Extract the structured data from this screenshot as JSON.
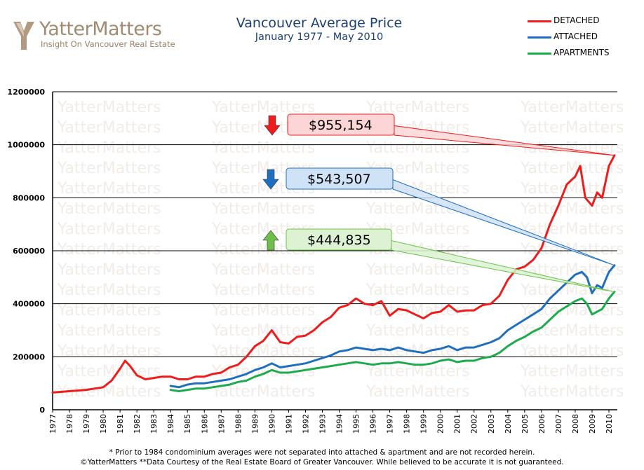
{
  "logo": {
    "name": "YatterMatters",
    "tagline": "Insight On Vancouver Real Estate",
    "watermark_text": "YatterMatters"
  },
  "chart_data": {
    "type": "line",
    "title": "Vancouver Average Price",
    "subtitle": "January 1977 - May 2010",
    "xlabel": "",
    "ylabel": "",
    "ylim": [
      0,
      1200000
    ],
    "yticks": [
      "0",
      "200000",
      "400000",
      "600000",
      "800000",
      "1000000",
      "1200000"
    ],
    "xticks": [
      "1977",
      "1978",
      "1979",
      "1980",
      "1981",
      "1982",
      "1983",
      "1984",
      "1985",
      "1986",
      "1987",
      "1988",
      "1989",
      "1990",
      "1991",
      "1992",
      "1993",
      "1994",
      "1995",
      "1996",
      "1997",
      "1998",
      "1999",
      "2000",
      "2001",
      "2002",
      "2003",
      "2004",
      "2005",
      "2006",
      "2007",
      "2008",
      "2009",
      "2010"
    ],
    "grid": true,
    "legend_position": "top-right",
    "series": [
      {
        "name": "DETACHED",
        "color": "#ee1c1c",
        "x": [
          1977.0,
          1978.0,
          1979.0,
          1980.0,
          1980.5,
          1981.0,
          1981.3,
          1981.6,
          1982.0,
          1982.5,
          1983.0,
          1983.5,
          1984.0,
          1984.5,
          1985.0,
          1985.5,
          1986.0,
          1986.5,
          1987.0,
          1987.5,
          1988.0,
          1988.5,
          1989.0,
          1989.5,
          1990.0,
          1990.5,
          1991.0,
          1991.5,
          1992.0,
          1992.5,
          1993.0,
          1993.5,
          1994.0,
          1994.5,
          1995.0,
          1995.5,
          1996.0,
          1996.5,
          1997.0,
          1997.5,
          1998.0,
          1998.5,
          1999.0,
          1999.5,
          2000.0,
          2000.5,
          2001.0,
          2001.5,
          2002.0,
          2002.5,
          2003.0,
          2003.5,
          2004.0,
          2004.5,
          2005.0,
          2005.5,
          2006.0,
          2006.5,
          2007.0,
          2007.5,
          2008.0,
          2008.3,
          2008.6,
          2009.0,
          2009.3,
          2009.6,
          2010.0,
          2010.33
        ],
        "values": [
          65000,
          70000,
          75000,
          85000,
          110000,
          155000,
          185000,
          165000,
          130000,
          115000,
          120000,
          125000,
          125000,
          115000,
          115000,
          125000,
          125000,
          135000,
          140000,
          160000,
          170000,
          200000,
          240000,
          260000,
          300000,
          255000,
          250000,
          275000,
          280000,
          300000,
          330000,
          350000,
          385000,
          395000,
          420000,
          400000,
          395000,
          410000,
          355000,
          380000,
          375000,
          360000,
          345000,
          365000,
          370000,
          395000,
          370000,
          375000,
          375000,
          395000,
          400000,
          430000,
          490000,
          530000,
          540000,
          565000,
          610000,
          700000,
          770000,
          850000,
          880000,
          920000,
          800000,
          770000,
          820000,
          800000,
          920000,
          960000
        ]
      },
      {
        "name": "ATTACHED",
        "color": "#1f6fc0",
        "x": [
          1984.0,
          1984.5,
          1985.0,
          1985.5,
          1986.0,
          1986.5,
          1987.0,
          1987.5,
          1988.0,
          1988.5,
          1989.0,
          1989.5,
          1990.0,
          1990.5,
          1991.0,
          1991.5,
          1992.0,
          1992.5,
          1993.0,
          1993.5,
          1994.0,
          1994.5,
          1995.0,
          1995.5,
          1996.0,
          1996.5,
          1997.0,
          1997.5,
          1998.0,
          1998.5,
          1999.0,
          1999.5,
          2000.0,
          2000.5,
          2001.0,
          2001.5,
          2002.0,
          2002.5,
          2003.0,
          2003.5,
          2004.0,
          2004.5,
          2005.0,
          2005.5,
          2006.0,
          2006.5,
          2007.0,
          2007.5,
          2008.0,
          2008.4,
          2008.7,
          2009.0,
          2009.3,
          2009.6,
          2010.0,
          2010.33
        ],
        "values": [
          90000,
          85000,
          95000,
          100000,
          100000,
          105000,
          110000,
          115000,
          125000,
          135000,
          150000,
          160000,
          175000,
          160000,
          165000,
          170000,
          175000,
          185000,
          195000,
          205000,
          220000,
          225000,
          235000,
          230000,
          225000,
          230000,
          225000,
          235000,
          225000,
          220000,
          215000,
          225000,
          230000,
          240000,
          225000,
          235000,
          235000,
          245000,
          255000,
          270000,
          300000,
          320000,
          340000,
          360000,
          380000,
          420000,
          450000,
          480000,
          510000,
          520000,
          500000,
          440000,
          470000,
          460000,
          520000,
          545000
        ]
      },
      {
        "name": "APARTMENTS",
        "color": "#1eab4e",
        "x": [
          1984.0,
          1984.5,
          1985.0,
          1985.5,
          1986.0,
          1986.5,
          1987.0,
          1987.5,
          1988.0,
          1988.5,
          1989.0,
          1989.5,
          1990.0,
          1990.5,
          1991.0,
          1991.5,
          1992.0,
          1992.5,
          1993.0,
          1993.5,
          1994.0,
          1994.5,
          1995.0,
          1995.5,
          1996.0,
          1996.5,
          1997.0,
          1997.5,
          1998.0,
          1998.5,
          1999.0,
          1999.5,
          2000.0,
          2000.5,
          2001.0,
          2001.5,
          2002.0,
          2002.5,
          2003.0,
          2003.5,
          2004.0,
          2004.5,
          2005.0,
          2005.5,
          2006.0,
          2006.5,
          2007.0,
          2007.5,
          2008.0,
          2008.4,
          2008.7,
          2009.0,
          2009.3,
          2009.6,
          2010.0,
          2010.33
        ],
        "values": [
          75000,
          70000,
          75000,
          80000,
          80000,
          85000,
          90000,
          95000,
          105000,
          110000,
          125000,
          135000,
          150000,
          140000,
          140000,
          145000,
          150000,
          155000,
          160000,
          165000,
          170000,
          175000,
          180000,
          175000,
          170000,
          175000,
          175000,
          180000,
          175000,
          170000,
          170000,
          175000,
          185000,
          190000,
          180000,
          185000,
          185000,
          195000,
          200000,
          215000,
          240000,
          260000,
          275000,
          295000,
          310000,
          340000,
          370000,
          390000,
          410000,
          420000,
          400000,
          360000,
          370000,
          380000,
          420000,
          445000
        ]
      }
    ],
    "annotations": [
      {
        "series": "DETACHED",
        "value": "$955,154",
        "direction": "down",
        "color": "#ee1c1c",
        "fill": "#fcd6d6"
      },
      {
        "series": "ATTACHED",
        "value": "$543,507",
        "direction": "down",
        "color": "#1f6fc0",
        "fill": "#cfe2f6"
      },
      {
        "series": "APARTMENTS",
        "value": "$444,835",
        "direction": "up",
        "color": "#6cc04a",
        "fill": "#dcf2d3"
      }
    ]
  },
  "footnotes": {
    "line1": "* Prior to 1984 condominium averages were not separated into attached & apartment and are not recorded herein.",
    "line2": "©YatterMatters **Data Courtesy of the Real Estate Board of Greater Vancouver.  While believed to be accurate it is not guaranteed."
  }
}
